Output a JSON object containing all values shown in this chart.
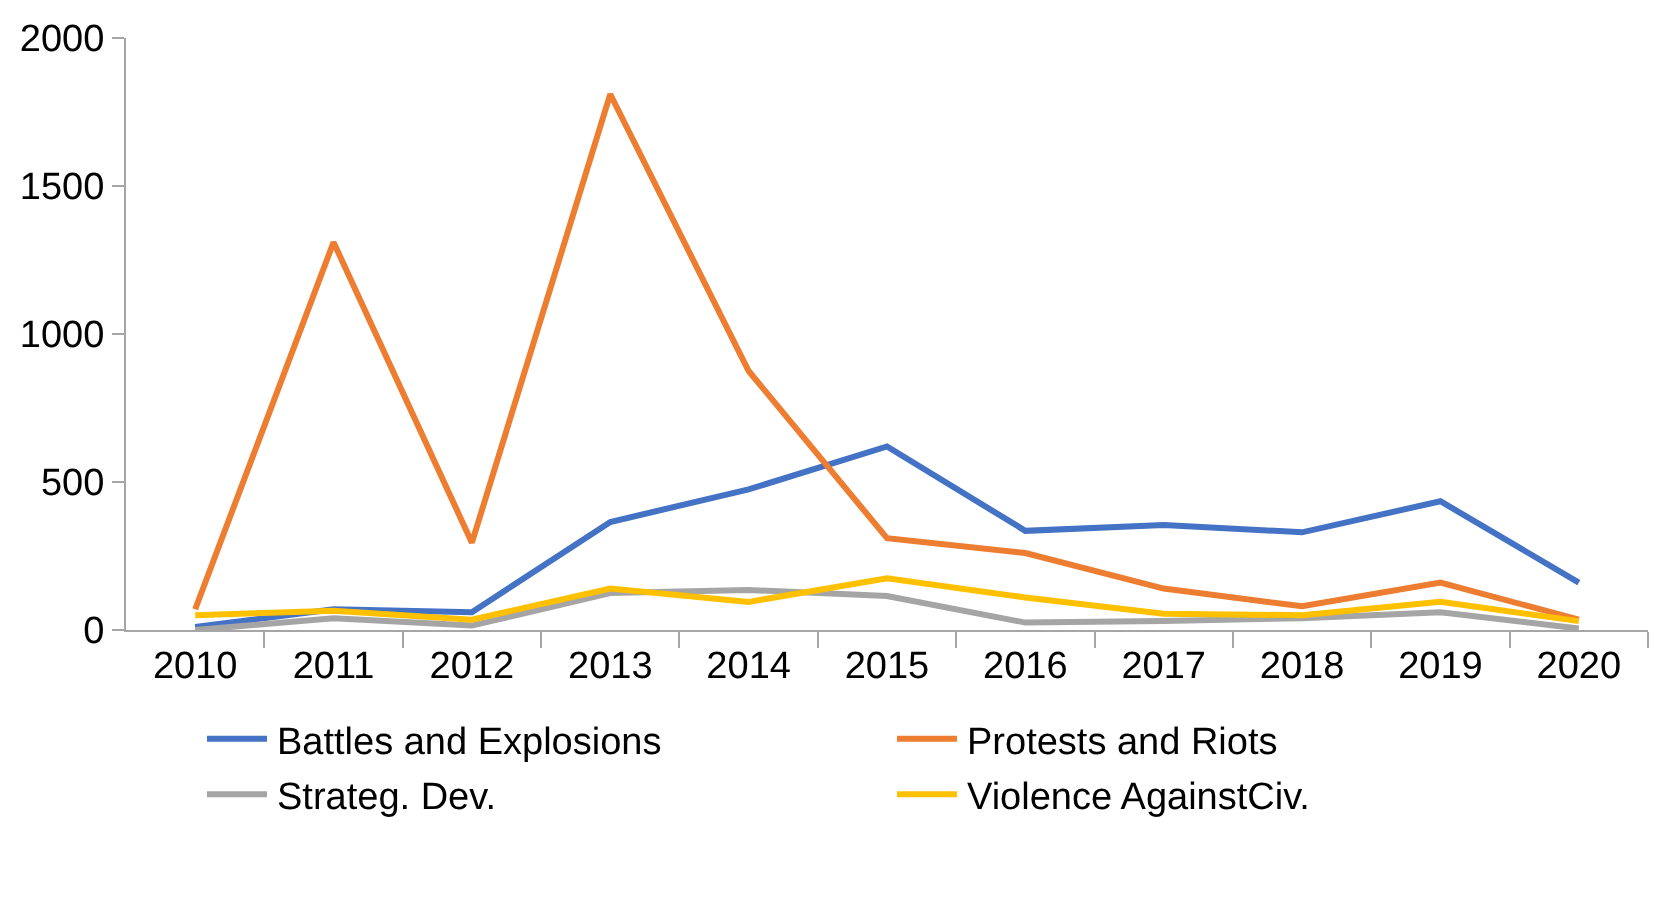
{
  "chart_data": {
    "type": "line",
    "categories": [
      "2010",
      "2011",
      "2012",
      "2013",
      "2014",
      "2015",
      "2016",
      "2017",
      "2018",
      "2019",
      "2020"
    ],
    "series": [
      {
        "name": "Battles and Explosions",
        "color": "#4472c4",
        "values": [
          10,
          70,
          60,
          365,
          475,
          620,
          335,
          355,
          330,
          435,
          160
        ]
      },
      {
        "name": "Protests and Riots",
        "color": "#ed7d31",
        "values": [
          70,
          1310,
          295,
          1810,
          875,
          310,
          260,
          140,
          80,
          160,
          35
        ]
      },
      {
        "name": "Strateg. Dev.",
        "color": "#a5a5a5",
        "values": [
          0,
          40,
          15,
          125,
          135,
          115,
          25,
          30,
          40,
          60,
          5
        ]
      },
      {
        "name": "Violence AgainstCiv.",
        "color": "#ffc000",
        "values": [
          50,
          65,
          35,
          140,
          95,
          175,
          110,
          55,
          50,
          95,
          30
        ]
      }
    ],
    "ylim": [
      0,
      2000
    ],
    "yticks": [
      0,
      500,
      1000,
      1500,
      2000
    ],
    "legend": "bottom",
    "marker": "none",
    "line_style": "solid"
  }
}
